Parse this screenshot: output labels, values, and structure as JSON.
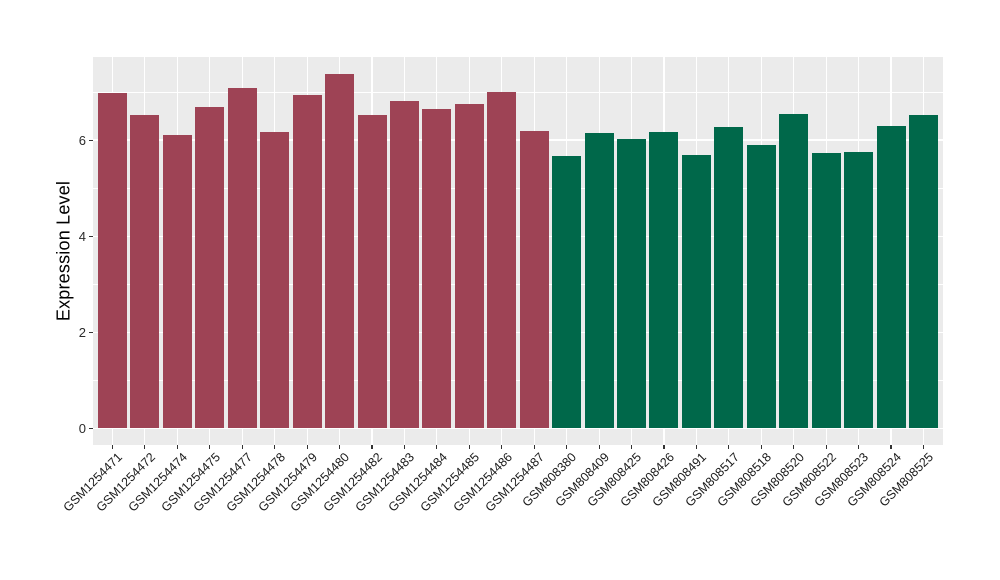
{
  "chart_data": {
    "type": "bar",
    "title": "",
    "xlabel": "",
    "ylabel": "Expression Level",
    "ylim": [
      0,
      7.73
    ],
    "y_major_ticks": [
      0,
      2,
      4,
      6
    ],
    "y_minor_gridlines": [
      1,
      3,
      5,
      7
    ],
    "grid": true,
    "legend_position": "none",
    "panel_background": "#EBEBEB",
    "gridline_color": "#FFFFFF",
    "axis_text_color": "#2b2b2b",
    "group_colors": {
      "group1": "#9E4355",
      "group2": "#00684A"
    },
    "bars": [
      {
        "label": "GSM1254471",
        "value": 6.98,
        "group": "group1"
      },
      {
        "label": "GSM1254472",
        "value": 6.53,
        "group": "group1"
      },
      {
        "label": "GSM1254474",
        "value": 6.11,
        "group": "group1"
      },
      {
        "label": "GSM1254475",
        "value": 6.69,
        "group": "group1"
      },
      {
        "label": "GSM1254477",
        "value": 7.08,
        "group": "group1"
      },
      {
        "label": "GSM1254478",
        "value": 6.17,
        "group": "group1"
      },
      {
        "label": "GSM1254479",
        "value": 6.94,
        "group": "group1"
      },
      {
        "label": "GSM1254480",
        "value": 7.37,
        "group": "group1"
      },
      {
        "label": "GSM1254482",
        "value": 6.53,
        "group": "group1"
      },
      {
        "label": "GSM1254483",
        "value": 6.82,
        "group": "group1"
      },
      {
        "label": "GSM1254484",
        "value": 6.64,
        "group": "group1"
      },
      {
        "label": "GSM1254485",
        "value": 6.76,
        "group": "group1"
      },
      {
        "label": "GSM1254486",
        "value": 7.01,
        "group": "group1"
      },
      {
        "label": "GSM1254487",
        "value": 6.19,
        "group": "group1"
      },
      {
        "label": "GSM808380",
        "value": 5.67,
        "group": "group2"
      },
      {
        "label": "GSM808409",
        "value": 6.16,
        "group": "group2"
      },
      {
        "label": "GSM808425",
        "value": 6.02,
        "group": "group2"
      },
      {
        "label": "GSM808426",
        "value": 6.18,
        "group": "group2"
      },
      {
        "label": "GSM808491",
        "value": 5.7,
        "group": "group2"
      },
      {
        "label": "GSM808517",
        "value": 6.27,
        "group": "group2"
      },
      {
        "label": "GSM808518",
        "value": 5.9,
        "group": "group2"
      },
      {
        "label": "GSM808520",
        "value": 6.54,
        "group": "group2"
      },
      {
        "label": "GSM808522",
        "value": 5.74,
        "group": "group2"
      },
      {
        "label": "GSM808523",
        "value": 5.76,
        "group": "group2"
      },
      {
        "label": "GSM808524",
        "value": 6.3,
        "group": "group2"
      },
      {
        "label": "GSM808525",
        "value": 6.52,
        "group": "group2"
      }
    ]
  }
}
